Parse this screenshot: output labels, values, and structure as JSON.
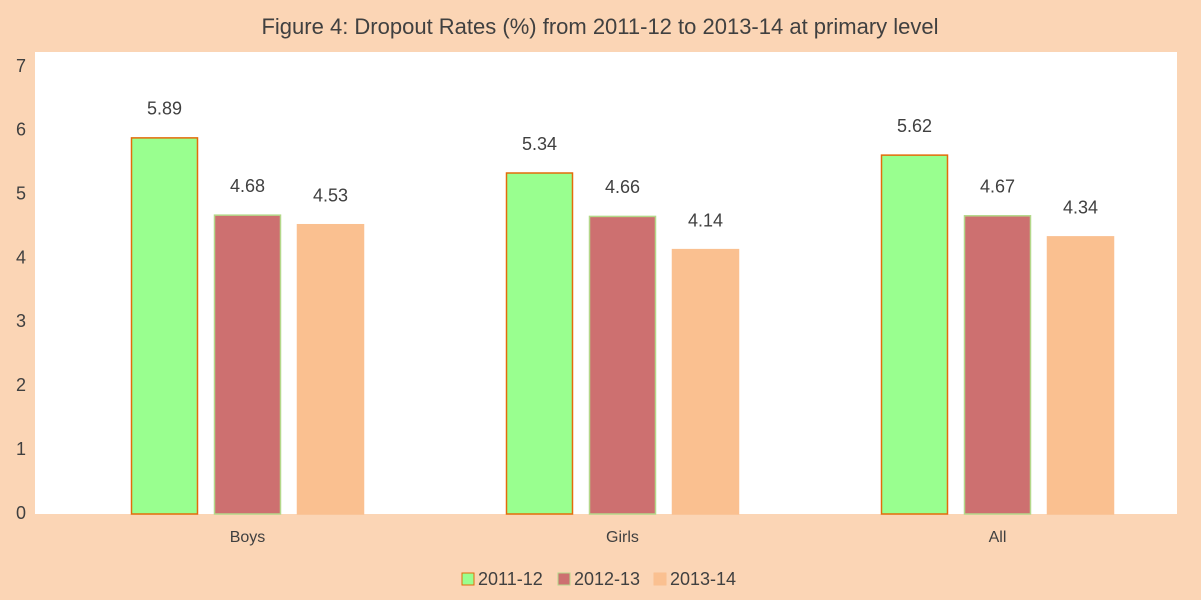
{
  "chart_data": {
    "type": "bar",
    "title": "Figure 4: Dropout Rates (%) from 2011-12 to 2013-14 at primary level",
    "categories": [
      "Boys",
      "Girls",
      "All"
    ],
    "series": [
      {
        "name": "2011-12",
        "color": "#99ff8f",
        "stroke": "#e36c0a",
        "values": [
          5.89,
          5.34,
          5.62
        ]
      },
      {
        "name": "2012-13",
        "color": "#cd7070",
        "stroke": "#b4d88a",
        "values": [
          4.68,
          4.66,
          4.67
        ]
      },
      {
        "name": "2013-14",
        "color": "#fac090",
        "stroke": "#fac090",
        "values": [
          4.53,
          4.14,
          4.34
        ]
      }
    ],
    "ylim": [
      0,
      7
    ],
    "yticks": [
      0,
      1,
      2,
      3,
      4,
      5,
      6,
      7
    ],
    "grid": false,
    "legend": "bottom"
  }
}
